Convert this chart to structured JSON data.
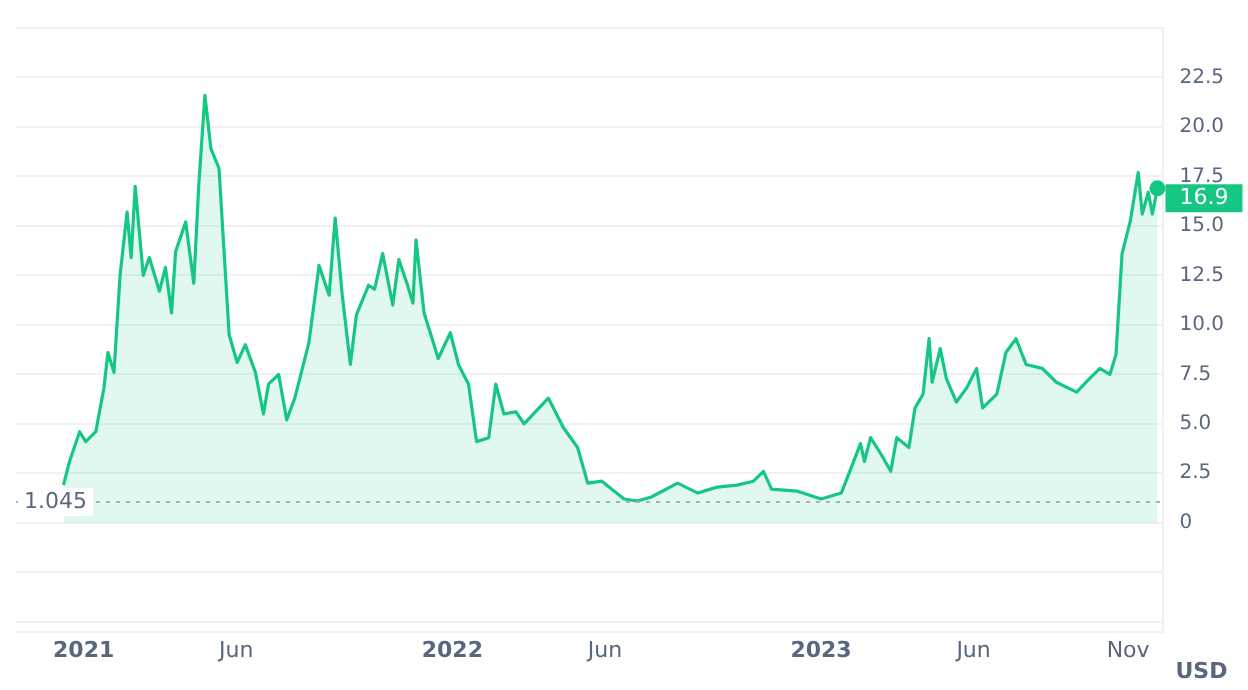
{
  "chart_data": {
    "type": "area",
    "ylabel": "USD",
    "x": [
      "2020-12-12",
      "2020-12-18",
      "2020-12-28",
      "2021-01-03",
      "2021-01-13",
      "2021-01-21",
      "2021-01-25",
      "2021-01-31",
      "2021-02-06",
      "2021-02-13",
      "2021-02-17",
      "2021-02-21",
      "2021-03-01",
      "2021-03-07",
      "2021-03-17",
      "2021-03-23",
      "2021-03-29",
      "2021-04-02",
      "2021-04-12",
      "2021-04-20",
      "2021-04-25",
      "2021-05-01",
      "2021-05-07",
      "2021-05-15",
      "2021-05-25",
      "2021-06-02",
      "2021-06-10",
      "2021-06-20",
      "2021-06-28",
      "2021-07-03",
      "2021-07-13",
      "2021-07-21",
      "2021-07-29",
      "2021-08-12",
      "2021-08-22",
      "2021-09-01",
      "2021-09-07",
      "2021-09-14",
      "2021-09-22",
      "2021-09-28",
      "2021-10-10",
      "2021-10-16",
      "2021-10-24",
      "2021-11-03",
      "2021-11-09",
      "2021-11-17",
      "2021-11-23",
      "2021-11-26",
      "2021-12-04",
      "2021-12-12",
      "2021-12-18",
      "2021-12-30",
      "2022-01-07",
      "2022-01-17",
      "2022-01-25",
      "2022-02-06",
      "2022-02-13",
      "2022-02-21",
      "2022-03-05",
      "2022-03-13",
      "2022-04-06",
      "2022-04-21",
      "2022-05-05",
      "2022-05-15",
      "2022-05-29",
      "2022-06-20",
      "2022-07-03",
      "2022-07-17",
      "2022-08-12",
      "2022-09-01",
      "2022-09-20",
      "2022-10-10",
      "2022-10-26",
      "2022-11-05",
      "2022-11-13",
      "2022-12-08",
      "2023-01-01",
      "2023-01-21",
      "2023-01-31",
      "2023-02-09",
      "2023-02-13",
      "2023-02-19",
      "2023-03-01",
      "2023-03-11",
      "2023-03-17",
      "2023-03-29",
      "2023-04-04",
      "2023-04-12",
      "2023-04-18",
      "2023-04-21",
      "2023-04-29",
      "2023-05-05",
      "2023-05-15",
      "2023-05-25",
      "2023-06-04",
      "2023-06-10",
      "2023-06-24",
      "2023-07-03",
      "2023-07-13",
      "2023-07-23",
      "2023-08-08",
      "2023-08-22",
      "2023-09-11",
      "2023-09-24",
      "2023-10-04",
      "2023-10-14",
      "2023-10-20",
      "2023-10-26",
      "2023-11-03",
      "2023-11-11",
      "2023-11-15",
      "2023-11-21",
      "2023-11-25",
      "2023-11-30"
    ],
    "series": [
      {
        "color": "#16c784",
        "values": [
          1.9,
          3.1,
          4.6,
          4.1,
          4.6,
          6.8,
          8.6,
          7.6,
          12.5,
          15.7,
          13.4,
          17.0,
          12.5,
          13.4,
          11.7,
          12.9,
          10.6,
          13.7,
          15.2,
          12.1,
          17.1,
          21.6,
          18.9,
          17.9,
          9.5,
          8.1,
          9.0,
          7.6,
          5.5,
          7.0,
          7.5,
          5.2,
          6.3,
          9.1,
          13.0,
          11.5,
          15.4,
          11.5,
          8.0,
          10.5,
          12.0,
          11.8,
          13.6,
          11.0,
          13.3,
          12.1,
          11.1,
          14.3,
          10.6,
          9.3,
          8.3,
          9.6,
          8.0,
          7.0,
          4.1,
          4.3,
          7.0,
          5.5,
          5.6,
          5.0,
          6.3,
          4.8,
          3.8,
          2.0,
          2.1,
          1.2,
          1.1,
          1.3,
          2.0,
          1.5,
          1.8,
          1.9,
          2.1,
          2.6,
          1.7,
          1.6,
          1.2,
          1.5,
          2.8,
          4.0,
          3.1,
          4.3,
          3.5,
          2.6,
          4.3,
          3.8,
          5.8,
          6.5,
          9.3,
          7.1,
          8.8,
          7.3,
          6.1,
          6.8,
          7.8,
          5.8,
          6.5,
          8.6,
          9.3,
          8.0,
          7.8,
          7.1,
          6.6,
          7.3,
          7.8,
          7.5,
          8.5,
          13.6,
          15.2,
          17.7,
          15.6,
          16.7,
          15.6,
          16.9
        ]
      }
    ],
    "xlim": [
      "2020-10-26",
      "2023-12-06"
    ],
    "xticks": [
      {
        "value": "2021-01-01",
        "label": "2021"
      },
      {
        "value": "2021-06-01",
        "label": "Jun"
      },
      {
        "value": "2022-01-01",
        "label": "2022"
      },
      {
        "value": "2022-06-01",
        "label": "Jun"
      },
      {
        "value": "2023-01-01",
        "label": "2023"
      },
      {
        "value": "2023-06-01",
        "label": "Jun"
      },
      {
        "value": "2023-11-01",
        "label": "Nov"
      }
    ],
    "ylim": [
      -5.5,
      25
    ],
    "yticks": [
      {
        "value": -5,
        "label": null
      },
      {
        "value": -2.5,
        "label": null
      },
      0,
      2.5,
      {
        "value": 5,
        "label": "5.0"
      },
      7.5,
      {
        "value": 10,
        "label": "10.0"
      },
      12.5,
      {
        "value": 15,
        "label": "15.0"
      },
      17.5,
      {
        "value": 20,
        "label": "20.0"
      },
      22.5,
      {
        "value": 25,
        "label": null
      }
    ],
    "grid": "y",
    "legend": false,
    "marker": "none",
    "line_style": "solid",
    "ref_lines": [
      {
        "axis": "y",
        "value": 1.045,
        "label": "1.045",
        "line_style": "dotted",
        "color": "#a6b0c3"
      }
    ],
    "annotations": [
      {
        "text": "16.9",
        "x": "2023-11-30",
        "y": 16.9
      }
    ]
  }
}
